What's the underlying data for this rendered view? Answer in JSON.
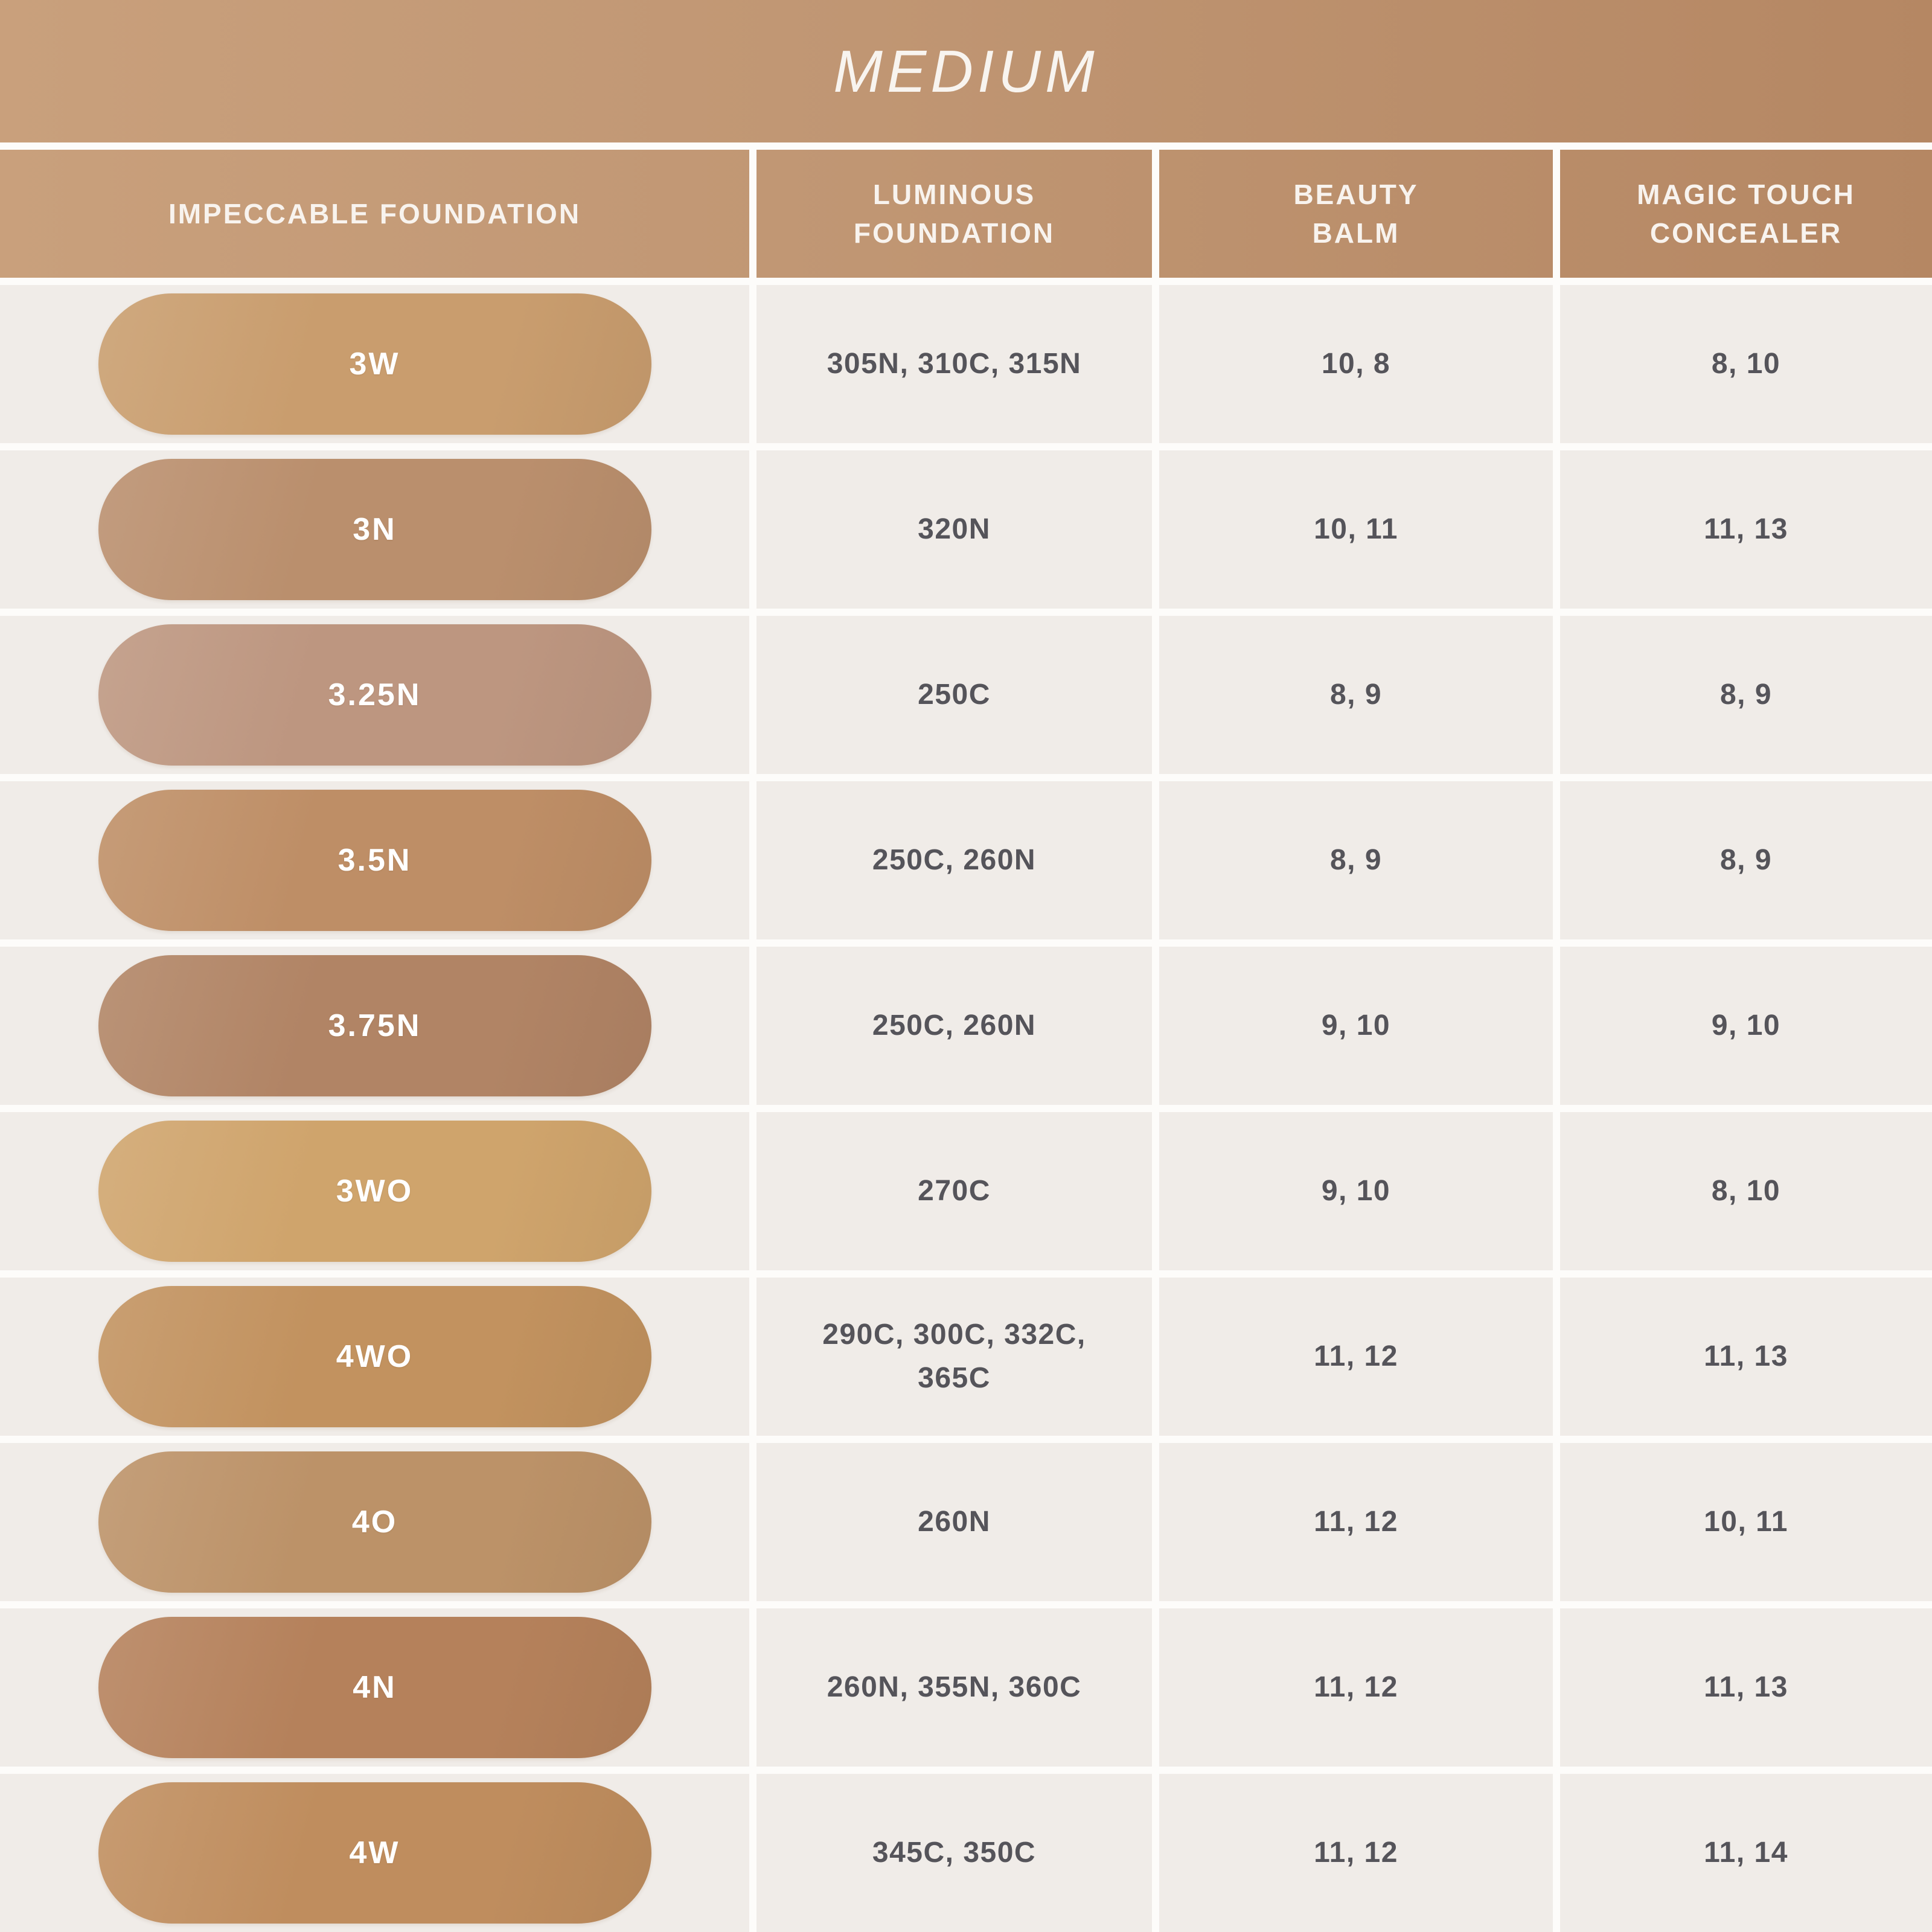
{
  "page": {
    "title": "MEDIUM"
  },
  "colors": {
    "header_gradient_left": "#C9A07C",
    "header_gradient_right": "#B58763",
    "cell_background": "#F0ECE8",
    "separator": "#FDFCFA",
    "header_text": "#F8F3EE",
    "value_text": "#55545A",
    "swatch_label_text": "#FFFFFF"
  },
  "table": {
    "columns": [
      "IMPECCABLE FOUNDATION",
      "LUMINOUS\nFOUNDATION",
      "BEAUTY\nBALM",
      "MAGIC TOUCH\nCONCEALER"
    ],
    "rows": [
      {
        "shade": "3W",
        "swatch_color": "#C99D6E",
        "luminous": "305N, 310C, 315N",
        "beauty_balm": "10, 8",
        "concealer": "8, 10"
      },
      {
        "shade": "3N",
        "swatch_color": "#BA8F6D",
        "luminous": "320N",
        "beauty_balm": "10, 11",
        "concealer": "11, 13"
      },
      {
        "shade": "3.25N",
        "swatch_color": "#BD9680",
        "luminous": "250C",
        "beauty_balm": "8, 9",
        "concealer": "8, 9"
      },
      {
        "shade": "3.5N",
        "swatch_color": "#BE8E66",
        "luminous": "250C, 260N",
        "beauty_balm": "8, 9",
        "concealer": "8, 9"
      },
      {
        "shade": "3.75N",
        "swatch_color": "#B18465",
        "luminous": "250C, 260N",
        "beauty_balm": "9, 10",
        "concealer": "9, 10"
      },
      {
        "shade": "3WO",
        "swatch_color": "#CFA46C",
        "luminous": "270C",
        "beauty_balm": "9, 10",
        "concealer": "8, 10"
      },
      {
        "shade": "4WO",
        "swatch_color": "#C2925F",
        "luminous": "290C, 300C, 332C, 365C",
        "beauty_balm": "11, 12",
        "concealer": "11, 13"
      },
      {
        "shade": "4O",
        "swatch_color": "#BC9268",
        "luminous": "260N",
        "beauty_balm": "11, 12",
        "concealer": "10, 11"
      },
      {
        "shade": "4N",
        "swatch_color": "#B5815B",
        "luminous": "260N, 355N, 360C",
        "beauty_balm": "11, 12",
        "concealer": "11, 13"
      },
      {
        "shade": "4W",
        "swatch_color": "#BF8D5E",
        "luminous": "345C, 350C",
        "beauty_balm": "11, 12",
        "concealer": "11, 14"
      }
    ]
  },
  "chart_data": {
    "type": "table",
    "title": "MEDIUM",
    "columns": [
      "IMPECCABLE FOUNDATION",
      "LUMINOUS FOUNDATION",
      "BEAUTY BALM",
      "MAGIC TOUCH CONCEALER"
    ],
    "rows": [
      [
        "3W",
        "305N, 310C, 315N",
        "10, 8",
        "8, 10"
      ],
      [
        "3N",
        "320N",
        "10, 11",
        "11, 13"
      ],
      [
        "3.25N",
        "250C",
        "8, 9",
        "8, 9"
      ],
      [
        "3.5N",
        "250C, 260N",
        "8, 9",
        "8, 9"
      ],
      [
        "3.75N",
        "250C, 260N",
        "9, 10",
        "9, 10"
      ],
      [
        "3WO",
        "270C",
        "9, 10",
        "8, 10"
      ],
      [
        "4WO",
        "290C, 300C, 332C, 365C",
        "11, 12",
        "11, 13"
      ],
      [
        "4O",
        "260N",
        "11, 12",
        "10, 11"
      ],
      [
        "4N",
        "260N, 355N, 360C",
        "11, 12",
        "11, 13"
      ],
      [
        "4W",
        "345C, 350C",
        "11, 12",
        "11, 14"
      ]
    ],
    "layout": {
      "header_band_title_position": "top-center",
      "grid": "white separators between cells"
    }
  }
}
